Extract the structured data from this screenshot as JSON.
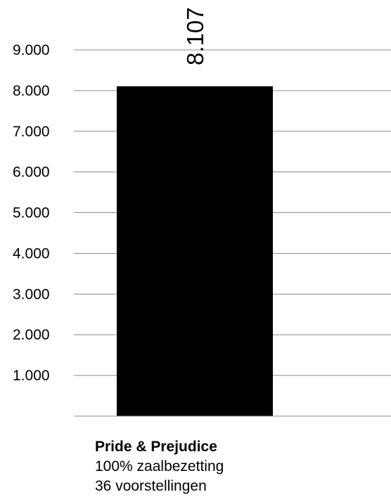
{
  "chart_data": {
    "type": "bar",
    "categories": [
      "Pride & Prejudice"
    ],
    "values": [
      8107
    ],
    "value_labels": [
      "8.107"
    ],
    "ylim": [
      0,
      9000
    ],
    "yticks": [
      1000,
      2000,
      3000,
      4000,
      5000,
      6000,
      7000,
      8000,
      9000
    ],
    "ytick_labels": [
      "1.000",
      "2.000",
      "3.000",
      "4.000",
      "5.000",
      "6.000",
      "7.000",
      "8.000",
      "9.000"
    ],
    "grid": true,
    "legend": "none",
    "bar_color": "#000000",
    "gridline_color": "#8c8c8c"
  },
  "caption": {
    "title": "Pride & Prejudice",
    "line1": "100% zaalbezetting",
    "line2": "36 voorstellingen"
  }
}
